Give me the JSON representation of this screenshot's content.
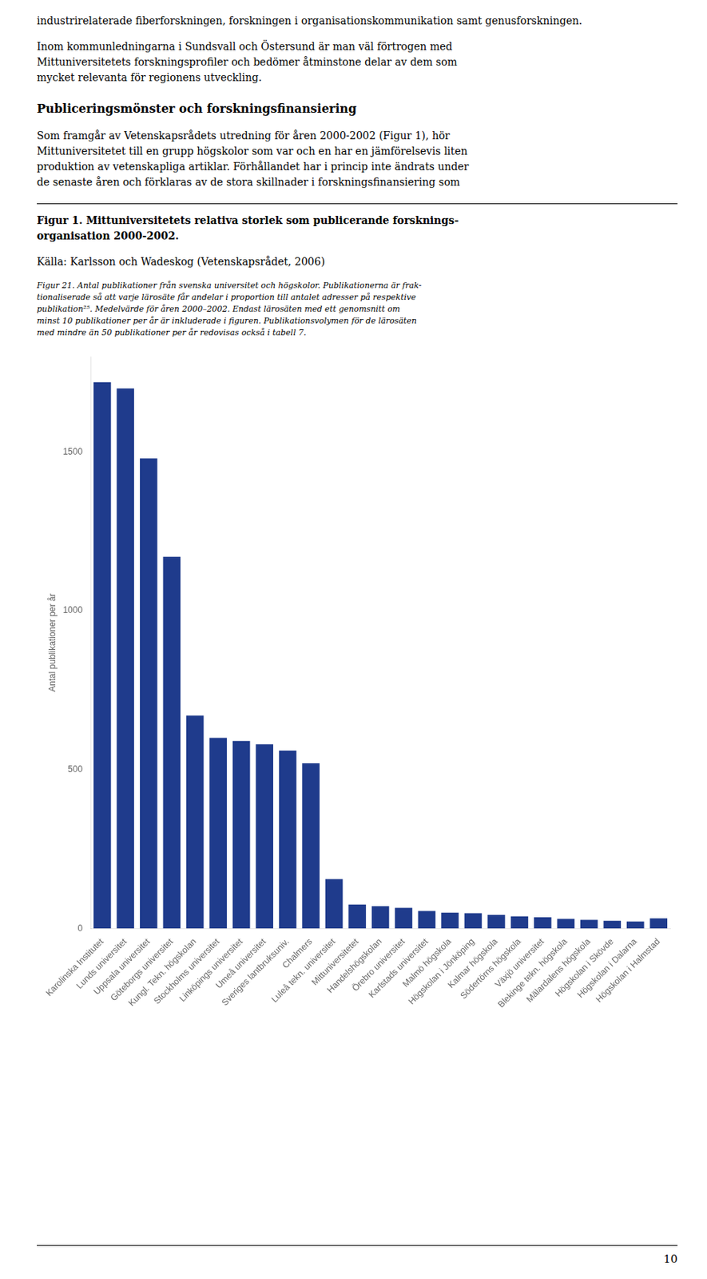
{
  "chart_data": {
    "type": "bar",
    "annotations": [
      "industrirelaterade fiberforskningen, forskningen i organisationskommunikation samt genusforskningen.",
      "Inom kommunledningarna i Sundsvall och Östersund är man väl förtrogen med\nMittuniversitetets forskningsprofiler och bedömer åtminstone delar av dem som\nmycket relevanta för regionens utveckling.",
      "Publiceringsmönster och forskningsfinansiering",
      "Som framgår av Vetenskapsrådets utredning för åren 2000-2002 (Figur 1), hör\nMittuniversitetet till en grupp högskolor som var och en har en jämförelsevis liten\nproduktion av vetenskapliga artiklar. Förhållandet har i princip inte ändrats under\nde senaste åren och förklaras av de stora skillnader i forskningsfinansiering som",
      "Figur 1. Mittuniversitetets relativa storlek som publicerande forsknings-\norganisation 2000-2002.",
      "Källa: Karlsson och Wadeskog (Vetenskapsrådet, 2006)",
      "Figur 21. Antal publikationer från svenska universitet och högskolor. Publikationerna är frak-\ntionaliserade så att varje lärosäte får andelar i proportion till antalet adresser på respektive\npublikation²⁵. Medelvärde för åren 2000–2002. Endast lärosäten med ett genomsnitt om\nminst 10 publikationer per år är inkluderade i figuren. Publikationsvolymen för de lärosäten\nmed mindre än 50 publikationer per år redovisas också i tabell 7.",
      "10"
    ],
    "categories": [
      "Karolinska Institutet",
      "Lunds universitet",
      "Uppsala universitet",
      "Göteborgs universitet",
      "Kungl. Tekn. högskolan",
      "Stockholms universitet",
      "Linköpings universitet",
      "Umeå universitet",
      "Sveriges lantbruksuniv.",
      "Chalmers",
      "Luleå tekn. universitet",
      "Mittuniversitetet",
      "Handelshögskolan",
      "Örebro universitet",
      "Karlstads universitet",
      "Malmö högskola",
      "Högskolan i Jönköping",
      "Kalmar högskola",
      "Södertörns högskola",
      "Växjö universitet",
      "Blekinge tekn. högskola",
      "Mälardalens högskola",
      "Högskolan i Skövde",
      "Högskolan i Dalarna",
      "Högskolan i Halmstad"
    ],
    "values": [
      1720,
      1700,
      1480,
      1170,
      670,
      600,
      590,
      580,
      560,
      520,
      155,
      75,
      70,
      65,
      55,
      50,
      48,
      43,
      38,
      35,
      30,
      27,
      24,
      22,
      32
    ],
    "color": "#1F3B8C",
    "ylabel": "Antal publikationer per år",
    "ylim": [
      0,
      1800
    ],
    "yticks": [
      0,
      500,
      1000,
      1500
    ],
    "grid": false
  }
}
